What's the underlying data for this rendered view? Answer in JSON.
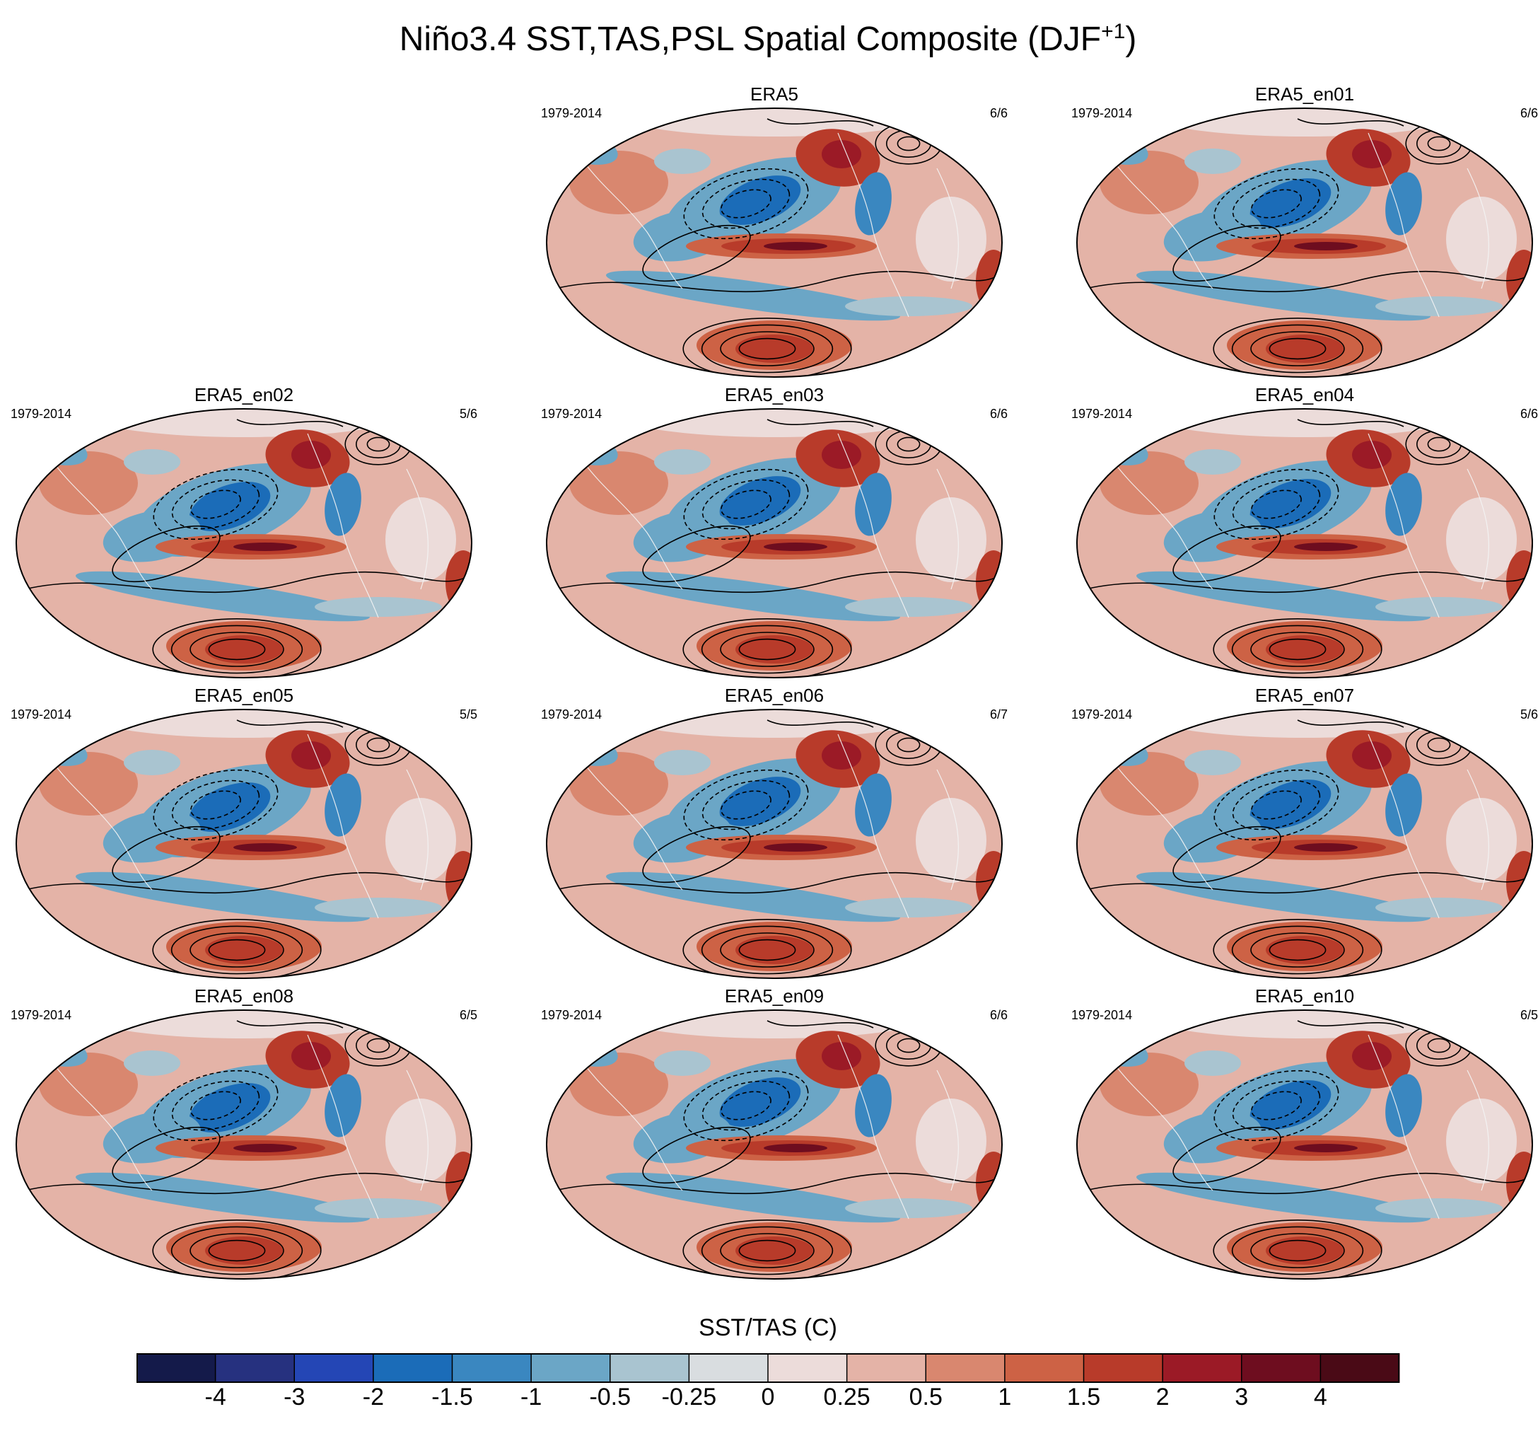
{
  "title": "Niño3.4 SST,TAS,PSL Spatial Composite (DJF",
  "title_superscript": "+1",
  "title_suffix": ")",
  "chart_data": {
    "type": "heatmap",
    "description_kind": "global map panels (Robinson projection) of SST/TAS shading with PSL contours",
    "colorbar": {
      "title": "SST/TAS (C)",
      "levels": [
        "-4",
        "-3",
        "-2",
        "-1.5",
        "-1",
        "-0.5",
        "-0.25",
        "0",
        "0.25",
        "0.5",
        "1",
        "1.5",
        "2",
        "3",
        "4"
      ],
      "colors": [
        "#141a4a",
        "#26317f",
        "#2446b5",
        "#1b6cb8",
        "#3a87c0",
        "#6ba6c6",
        "#a9c4d0",
        "#d9dde0",
        "#ecdcda",
        "#e4b3a7",
        "#d9876f",
        "#cd6245",
        "#b83b2a",
        "#9b1a26",
        "#6e0d1f",
        "#4a0a16"
      ]
    },
    "panels": [
      {
        "name": "ERA5",
        "years": "1979-2014",
        "count": "6/6"
      },
      {
        "name": "ERA5_en01",
        "years": "1979-2014",
        "count": "6/6"
      },
      {
        "name": "ERA5_en02",
        "years": "1979-2014",
        "count": "5/6"
      },
      {
        "name": "ERA5_en03",
        "years": "1979-2014",
        "count": "6/6"
      },
      {
        "name": "ERA5_en04",
        "years": "1979-2014",
        "count": "6/6"
      },
      {
        "name": "ERA5_en05",
        "years": "1979-2014",
        "count": "5/5"
      },
      {
        "name": "ERA5_en06",
        "years": "1979-2014",
        "count": "6/7"
      },
      {
        "name": "ERA5_en07",
        "years": "1979-2014",
        "count": "5/6"
      },
      {
        "name": "ERA5_en08",
        "years": "1979-2014",
        "count": "6/5"
      },
      {
        "name": "ERA5_en09",
        "years": "1979-2014",
        "count": "6/6"
      },
      {
        "name": "ERA5_en10",
        "years": "1979-2014",
        "count": "6/5"
      }
    ]
  }
}
